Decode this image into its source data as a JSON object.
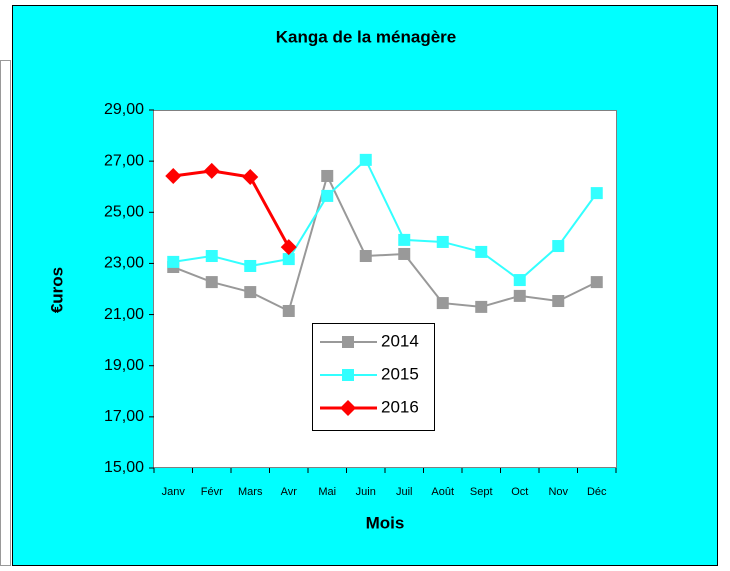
{
  "chart_data": {
    "type": "line",
    "title": "Kanga de la ménagère",
    "xlabel": "Mois",
    "ylabel": "€uros",
    "categories": [
      "Janv",
      "Févr",
      "Mars",
      "Avr",
      "Mai",
      "Juin",
      "Juil",
      "Août",
      "Sept",
      "Oct",
      "Nov",
      "Déc"
    ],
    "series": [
      {
        "name": "2014",
        "color": "#999999",
        "marker": "square",
        "values": [
          22.86,
          22.27,
          21.88,
          21.14,
          26.42,
          23.29,
          23.37,
          21.45,
          21.3,
          21.73,
          21.53,
          22.27
        ]
      },
      {
        "name": "2015",
        "color": "#33ffff",
        "marker": "square",
        "values": [
          23.06,
          23.29,
          22.9,
          23.17,
          25.64,
          27.05,
          23.92,
          23.84,
          23.45,
          22.35,
          23.68,
          25.75
        ]
      },
      {
        "name": "2016",
        "color": "#ff0000",
        "marker": "diamond",
        "values": [
          26.42,
          26.62,
          26.38,
          23.64,
          null,
          null,
          null,
          null,
          null,
          null,
          null,
          null
        ]
      }
    ],
    "ylim": [
      15,
      29
    ],
    "yticks": [
      {
        "value": 15,
        "label": "15,00"
      },
      {
        "value": 17,
        "label": "17,00"
      },
      {
        "value": 19,
        "label": "19,00"
      },
      {
        "value": 21,
        "label": "21,00"
      },
      {
        "value": 23,
        "label": "23,00"
      },
      {
        "value": 25,
        "label": "25,00"
      },
      {
        "value": 27,
        "label": "27,00"
      },
      {
        "value": 29,
        "label": "29,00"
      }
    ],
    "grid": false
  }
}
